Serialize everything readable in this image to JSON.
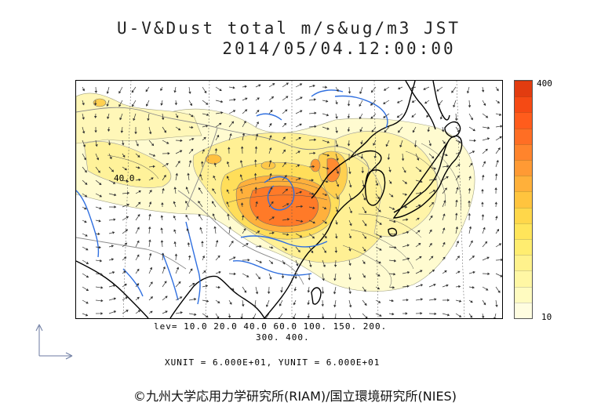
{
  "title": {
    "line1": "U-V&Dust total m/s&ug/m3 JST",
    "line2": "2014/05/04.12:00:00"
  },
  "map": {
    "contour_label": "40.0"
  },
  "legend": {
    "max_label": "400",
    "min_label": "10",
    "colors": [
      "#fffde0",
      "#fffbc0",
      "#fff7a4",
      "#fff28c",
      "#ffed70",
      "#ffe55a",
      "#ffd74a",
      "#ffc43e",
      "#ffb03a",
      "#ff9a34",
      "#ff842c",
      "#ff6e24",
      "#ff5c1c",
      "#f54a14",
      "#e23c10"
    ]
  },
  "levels": {
    "line1": "lev= 10.0 20.0 40.0 60.0 100. 150. 200.",
    "line2": "300. 400."
  },
  "units_text": "XUNIT = 6.000E+01, YUNIT = 6.000E+01",
  "credit": "©九州大学応用力学研究所(RIAM)/国立環境研究所(NIES)",
  "palette": {
    "coast": "#000000",
    "border": "#888888",
    "river": "#2f6fe0",
    "vector": "#333333"
  }
}
